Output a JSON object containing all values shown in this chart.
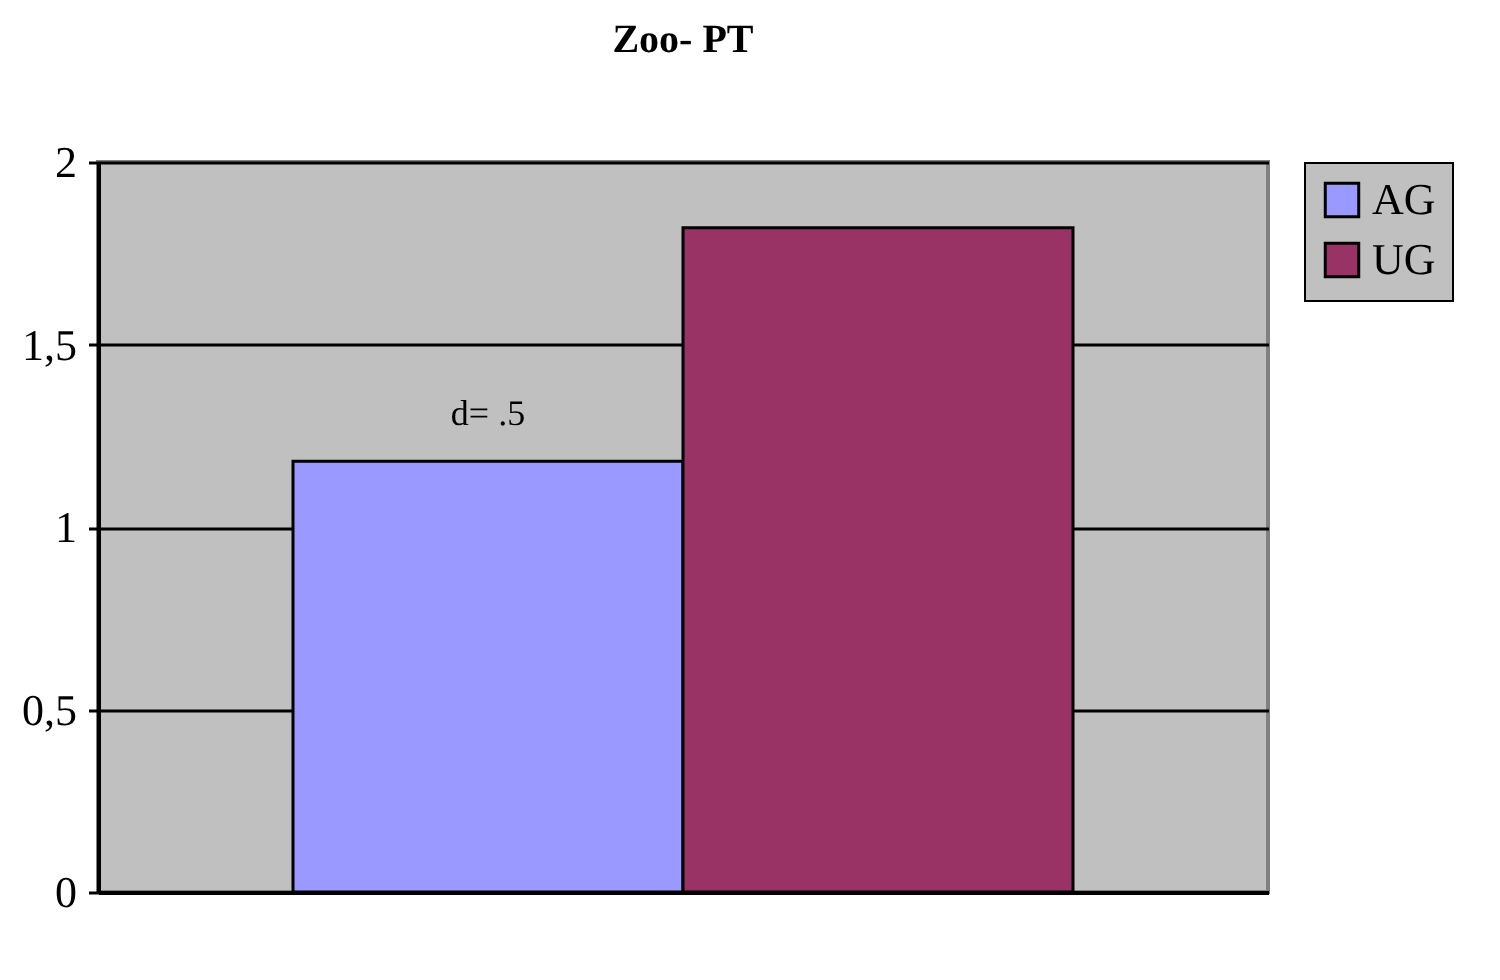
{
  "chart_data": {
    "type": "bar",
    "title": "Zoo- PT",
    "categories": [
      null
    ],
    "series": [
      {
        "name": "AG",
        "color": "#9999ff",
        "values": [
          1.18
        ]
      },
      {
        "name": "UG",
        "color": "#993366",
        "values": [
          1.82
        ]
      }
    ],
    "ylim": [
      0,
      2
    ],
    "yticks": [
      0,
      {
        "value": 0.5,
        "label": "0,5"
      },
      1,
      {
        "value": 1.5,
        "label": "1,5"
      },
      2
    ],
    "grid": "y",
    "legend": "right",
    "annotations": [
      "d= .5"
    ]
  }
}
